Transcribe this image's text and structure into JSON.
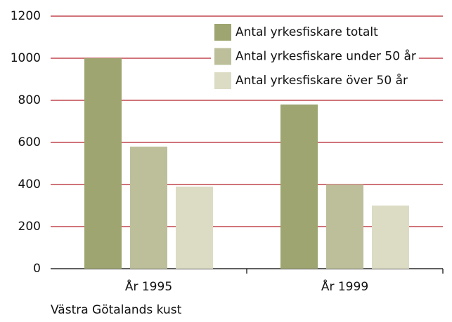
{
  "chart_data": {
    "type": "bar",
    "categories": [
      "År 1995",
      "År 1999"
    ],
    "series": [
      {
        "name": "Antal yrkesfiskare totalt",
        "color": "#9ea570",
        "values": [
          1000,
          780
        ]
      },
      {
        "name": "Antal yrkesfiskare under 50 år",
        "color": "#bdbf9a",
        "values": [
          580,
          400
        ]
      },
      {
        "name": "Antal yrkesfiskare över 50 år",
        "color": "#dcdcc5",
        "values": [
          390,
          300
        ]
      }
    ],
    "x_label": "Västra Götalands kust",
    "ylim": [
      0,
      1200
    ],
    "yticks": [
      0,
      200,
      400,
      600,
      800,
      1000,
      1200
    ],
    "grid": true,
    "grid_color": "#b5202a",
    "legend": "top-right"
  }
}
